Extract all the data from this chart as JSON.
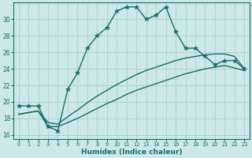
{
  "xlabel": "Humidex (Indice chaleur)",
  "xlim": [
    -0.5,
    23.5
  ],
  "ylim": [
    15.5,
    32.0
  ],
  "yticks": [
    16,
    18,
    20,
    22,
    24,
    26,
    28,
    30
  ],
  "xticks": [
    0,
    1,
    2,
    3,
    4,
    5,
    6,
    7,
    8,
    9,
    10,
    11,
    12,
    13,
    14,
    15,
    16,
    17,
    18,
    19,
    20,
    21,
    22,
    23
  ],
  "bg_color": "#cce8e8",
  "grid_color": "#aacfcf",
  "line_color": "#1a6b6b",
  "line1_x": [
    0,
    1,
    2,
    3,
    4,
    5,
    6,
    7,
    8,
    9,
    10,
    11,
    12,
    13,
    14,
    15,
    16,
    17,
    18,
    19,
    20,
    21,
    22,
    23
  ],
  "line1_y": [
    19.5,
    19.5,
    19.5,
    17.0,
    16.5,
    21.5,
    23.5,
    26.5,
    28.0,
    29.0,
    31.0,
    31.5,
    31.5,
    30.0,
    30.5,
    31.5,
    28.5,
    26.5,
    26.5,
    25.5,
    24.5,
    25.0,
    25.0,
    24.0
  ],
  "line2_x": [
    0,
    1,
    2,
    3,
    4,
    5,
    6,
    7,
    8,
    9,
    10,
    11,
    12,
    13,
    14,
    15,
    16,
    17,
    18,
    19,
    20,
    21,
    22,
    23
  ],
  "line2_y": [
    18.5,
    18.7,
    18.9,
    17.0,
    17.0,
    17.5,
    18.0,
    18.6,
    19.2,
    19.8,
    20.3,
    20.9,
    21.4,
    21.8,
    22.2,
    22.6,
    23.0,
    23.4,
    23.7,
    24.0,
    24.2,
    24.4,
    24.1,
    23.8
  ],
  "line3_x": [
    0,
    1,
    2,
    3,
    4,
    5,
    6,
    7,
    8,
    9,
    10,
    11,
    12,
    13,
    14,
    15,
    16,
    17,
    18,
    19,
    20,
    21,
    22,
    23
  ],
  "line3_y": [
    18.5,
    18.7,
    18.9,
    17.5,
    17.3,
    18.2,
    19.0,
    19.9,
    20.7,
    21.4,
    22.1,
    22.7,
    23.3,
    23.8,
    24.2,
    24.6,
    25.0,
    25.3,
    25.5,
    25.7,
    25.8,
    25.8,
    25.5,
    24.0
  ],
  "marker": "*",
  "marker_size": 4,
  "linewidth": 1.0
}
